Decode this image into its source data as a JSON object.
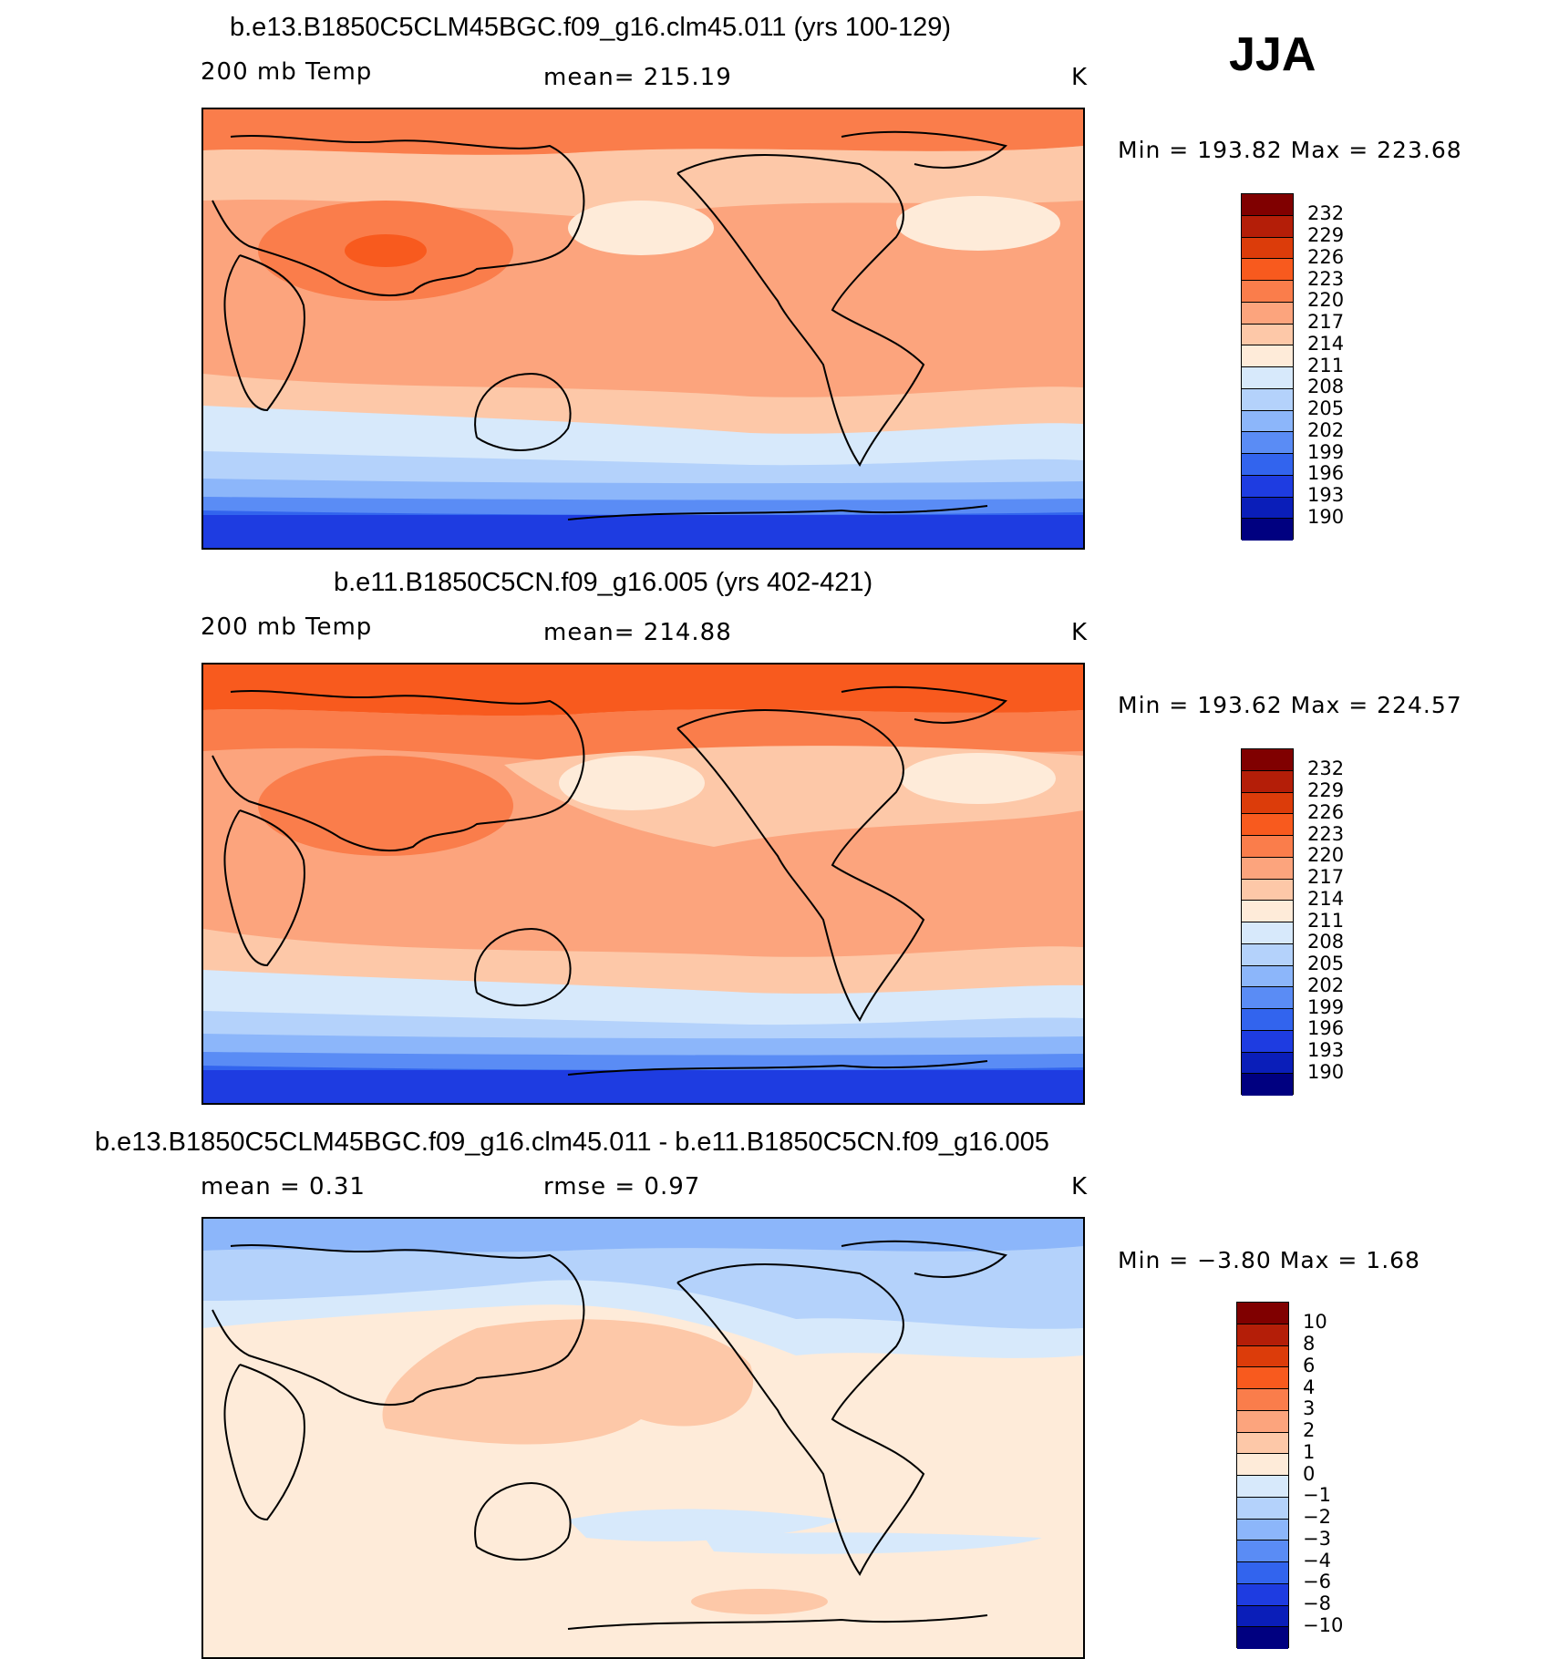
{
  "season": "JJA",
  "panels": [
    {
      "title": "b.e13.B1850C5CLM45BGC.f09_g16.clm45.011 (yrs 100-129)",
      "left_label": "200 mb Temp",
      "center_label": "mean= 215.19",
      "units": "K",
      "minmax": "Min = 193.82 Max = 223.68"
    },
    {
      "title": "b.e11.B1850C5CN.f09_g16.005 (yrs 402-421)",
      "left_label": "200 mb Temp",
      "center_label": "mean= 214.88",
      "units": "K",
      "minmax": "Min = 193.62 Max = 224.57"
    },
    {
      "title": "b.e13.B1850C5CLM45BGC.f09_g16.clm45.011 - b.e11.B1850C5CN.f09_g16.005",
      "left_label": "mean =    0.31",
      "center_label": "rmse =    0.97",
      "units": "K",
      "minmax": "Min =   −3.80 Max =    1.68"
    }
  ],
  "colorbars": {
    "temp": {
      "labels": [
        "232",
        "229",
        "226",
        "223",
        "220",
        "217",
        "214",
        "211",
        "208",
        "205",
        "202",
        "199",
        "196",
        "193",
        "190"
      ],
      "colors": [
        "#800000",
        "#b41e08",
        "#dc3c0a",
        "#f85a1e",
        "#fa7d4b",
        "#fca47d",
        "#fdc8a8",
        "#feebd9",
        "#d7e9fb",
        "#b4d2fb",
        "#8cb6fa",
        "#5a8cf5",
        "#3264ee",
        "#1e3ce1",
        "#0a1eb9",
        "#000080"
      ]
    },
    "diff": {
      "labels": [
        "10",
        "8",
        "6",
        "4",
        "3",
        "2",
        "1",
        "0",
        "−1",
        "−2",
        "−3",
        "−4",
        "−6",
        "−8",
        "−10"
      ],
      "colors": [
        "#800000",
        "#b41e08",
        "#dc3c0a",
        "#f85a1e",
        "#fa7d4b",
        "#fca47d",
        "#fdc8a8",
        "#feebd9",
        "#d7e9fb",
        "#b4d2fb",
        "#8cb6fa",
        "#5a8cf5",
        "#3264ee",
        "#1e3ce1",
        "#0a1eb9",
        "#000080"
      ]
    }
  }
}
